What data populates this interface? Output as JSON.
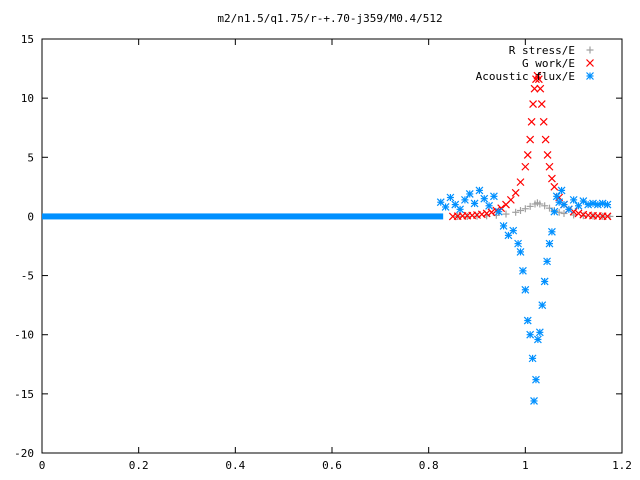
{
  "chart_data": {
    "type": "scatter",
    "title": "m2/n1.5/q1.75/r-+.70-j359/M0.4/512",
    "xlabel": "",
    "ylabel": "",
    "xlim": [
      0,
      1.2
    ],
    "ylim": [
      -20,
      15
    ],
    "x_ticks": [
      0,
      0.2,
      0.4,
      0.6,
      0.8,
      1,
      1.2
    ],
    "x_tick_labels": [
      "0",
      "0.2",
      "0.4",
      "0.6",
      "0.8",
      "1",
      "1.2"
    ],
    "y_ticks": [
      -20,
      -15,
      -10,
      -5,
      0,
      5,
      10,
      15
    ],
    "y_tick_labels": [
      "-20",
      "-15",
      "-10",
      "-5",
      "0",
      "5",
      "10",
      "15"
    ],
    "grid": false,
    "legend_position": "top-right",
    "series": [
      {
        "name": "R stress/E",
        "marker": "plus",
        "color": "#a0a0a0",
        "points": [
          [
            0.86,
            0.0
          ],
          [
            0.88,
            0.0
          ],
          [
            0.9,
            0.02
          ],
          [
            0.92,
            0.05
          ],
          [
            0.94,
            0.1
          ],
          [
            0.96,
            0.2
          ],
          [
            0.98,
            0.35
          ],
          [
            0.99,
            0.5
          ],
          [
            1.0,
            0.65
          ],
          [
            1.01,
            0.85
          ],
          [
            1.02,
            1.05
          ],
          [
            1.025,
            1.15
          ],
          [
            1.03,
            1.05
          ],
          [
            1.04,
            0.9
          ],
          [
            1.05,
            0.7
          ],
          [
            1.06,
            0.5
          ],
          [
            1.07,
            0.35
          ],
          [
            1.08,
            0.25
          ],
          [
            1.1,
            0.12
          ],
          [
            1.12,
            0.06
          ],
          [
            1.14,
            0.03
          ],
          [
            1.16,
            0.01
          ],
          [
            1.175,
            0.0
          ]
        ]
      },
      {
        "name": "G work/E",
        "marker": "cross",
        "color": "#ff0000",
        "points": [
          [
            0.85,
            0.0
          ],
          [
            0.86,
            0.02
          ],
          [
            0.87,
            0.04
          ],
          [
            0.88,
            0.06
          ],
          [
            0.89,
            0.08
          ],
          [
            0.9,
            0.12
          ],
          [
            0.91,
            0.18
          ],
          [
            0.92,
            0.25
          ],
          [
            0.93,
            0.35
          ],
          [
            0.94,
            0.5
          ],
          [
            0.95,
            0.7
          ],
          [
            0.96,
            1.0
          ],
          [
            0.97,
            1.4
          ],
          [
            0.98,
            2.0
          ],
          [
            0.99,
            2.9
          ],
          [
            1.0,
            4.2
          ],
          [
            1.005,
            5.2
          ],
          [
            1.01,
            6.5
          ],
          [
            1.013,
            8.0
          ],
          [
            1.016,
            9.5
          ],
          [
            1.019,
            10.8
          ],
          [
            1.022,
            11.6
          ],
          [
            1.025,
            11.9
          ],
          [
            1.028,
            11.6
          ],
          [
            1.031,
            10.8
          ],
          [
            1.034,
            9.5
          ],
          [
            1.038,
            8.0
          ],
          [
            1.042,
            6.5
          ],
          [
            1.046,
            5.2
          ],
          [
            1.05,
            4.2
          ],
          [
            1.055,
            3.2
          ],
          [
            1.06,
            2.5
          ],
          [
            1.07,
            1.6
          ],
          [
            1.08,
            1.0
          ],
          [
            1.09,
            0.6
          ],
          [
            1.1,
            0.4
          ],
          [
            1.11,
            0.25
          ],
          [
            1.12,
            0.15
          ],
          [
            1.13,
            0.1
          ],
          [
            1.14,
            0.06
          ],
          [
            1.15,
            0.04
          ],
          [
            1.16,
            0.02
          ],
          [
            1.17,
            0.01
          ]
        ]
      },
      {
        "name": "Acoustic flux/E",
        "marker": "star",
        "color": "#0090ff",
        "points": [
          [
            0.825,
            1.2
          ],
          [
            0.835,
            0.8
          ],
          [
            0.845,
            1.6
          ],
          [
            0.855,
            1.0
          ],
          [
            0.865,
            0.6
          ],
          [
            0.875,
            1.4
          ],
          [
            0.885,
            1.9
          ],
          [
            0.895,
            1.1
          ],
          [
            0.905,
            2.2
          ],
          [
            0.915,
            1.5
          ],
          [
            0.925,
            0.9
          ],
          [
            0.935,
            1.7
          ],
          [
            0.945,
            0.4
          ],
          [
            0.955,
            -0.8
          ],
          [
            0.965,
            -1.6
          ],
          [
            0.975,
            -1.2
          ],
          [
            0.985,
            -2.3
          ],
          [
            0.99,
            -3.0
          ],
          [
            0.995,
            -4.6
          ],
          [
            1.0,
            -6.2
          ],
          [
            1.005,
            -8.8
          ],
          [
            1.01,
            -10.0
          ],
          [
            1.015,
            -12.0
          ],
          [
            1.018,
            -15.6
          ],
          [
            1.022,
            -13.8
          ],
          [
            1.026,
            -10.4
          ],
          [
            1.03,
            -9.8
          ],
          [
            1.035,
            -7.5
          ],
          [
            1.04,
            -5.5
          ],
          [
            1.045,
            -3.8
          ],
          [
            1.05,
            -2.3
          ],
          [
            1.055,
            -1.3
          ],
          [
            1.06,
            0.4
          ],
          [
            1.065,
            1.7
          ],
          [
            1.07,
            1.2
          ],
          [
            1.075,
            2.2
          ],
          [
            1.08,
            1.0
          ],
          [
            1.09,
            0.6
          ],
          [
            1.1,
            1.4
          ],
          [
            1.11,
            0.9
          ],
          [
            1.12,
            1.3
          ],
          [
            1.13,
            1.0
          ],
          [
            1.14,
            1.1
          ],
          [
            1.15,
            1.0
          ],
          [
            1.16,
            1.1
          ],
          [
            1.17,
            1.0
          ]
        ]
      }
    ]
  }
}
